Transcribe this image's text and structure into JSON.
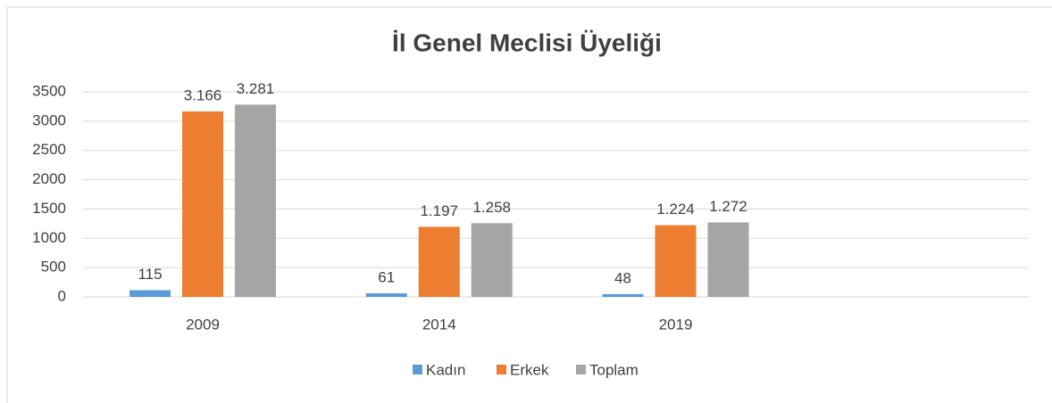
{
  "chart_data": {
    "type": "bar",
    "title": "İl Genel Meclisi Üyeliği",
    "categories": [
      "2009",
      "2014",
      "2019",
      null
    ],
    "series": [
      {
        "name": "Kadın",
        "color": "#5B9BD5",
        "values": [
          115,
          61,
          48,
          null
        ],
        "value_labels": [
          "115",
          "61",
          "48",
          null
        ]
      },
      {
        "name": "Erkek",
        "color": "#ED7D31",
        "values": [
          3166,
          1197,
          1224,
          null
        ],
        "value_labels": [
          "3.166",
          "1.197",
          "1.224",
          null
        ]
      },
      {
        "name": "Toplam",
        "color": "#A5A5A5",
        "values": [
          3281,
          1258,
          1272,
          null
        ],
        "value_labels": [
          "3.281",
          "1.258",
          "1.272",
          null
        ]
      }
    ],
    "ylim": [
      0,
      3500
    ],
    "yticks": [
      0,
      500,
      1000,
      1500,
      2000,
      2500,
      3000,
      3500
    ],
    "grid": true,
    "legend": "bottom"
  }
}
